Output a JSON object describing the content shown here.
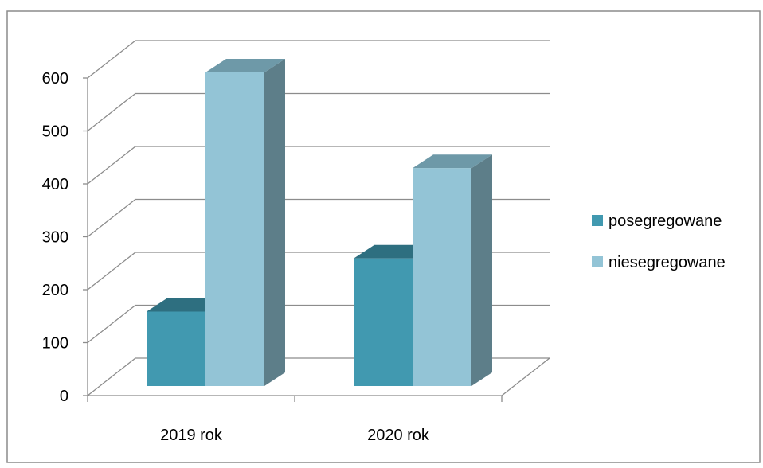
{
  "chart_data": {
    "type": "bar",
    "three_d": true,
    "categories": [
      "2019 rok",
      "2020 rok"
    ],
    "series": [
      {
        "name": "posegregowane",
        "values": [
          140,
          240
        ],
        "color": "#4199B0",
        "top_color": "#2E6F80",
        "side_color": "#2B6474"
      },
      {
        "name": "niesegregowane",
        "values": [
          590,
          410
        ],
        "color": "#93C4D6",
        "top_color": "#6E99A8",
        "side_color": "#5D7E89"
      }
    ],
    "y_ticks": [
      "0",
      "100",
      "200",
      "300",
      "400",
      "500",
      "600"
    ],
    "ylim": [
      0,
      600
    ],
    "grid": true,
    "legend_position": "right",
    "title": "",
    "xlabel": "",
    "ylabel": ""
  }
}
